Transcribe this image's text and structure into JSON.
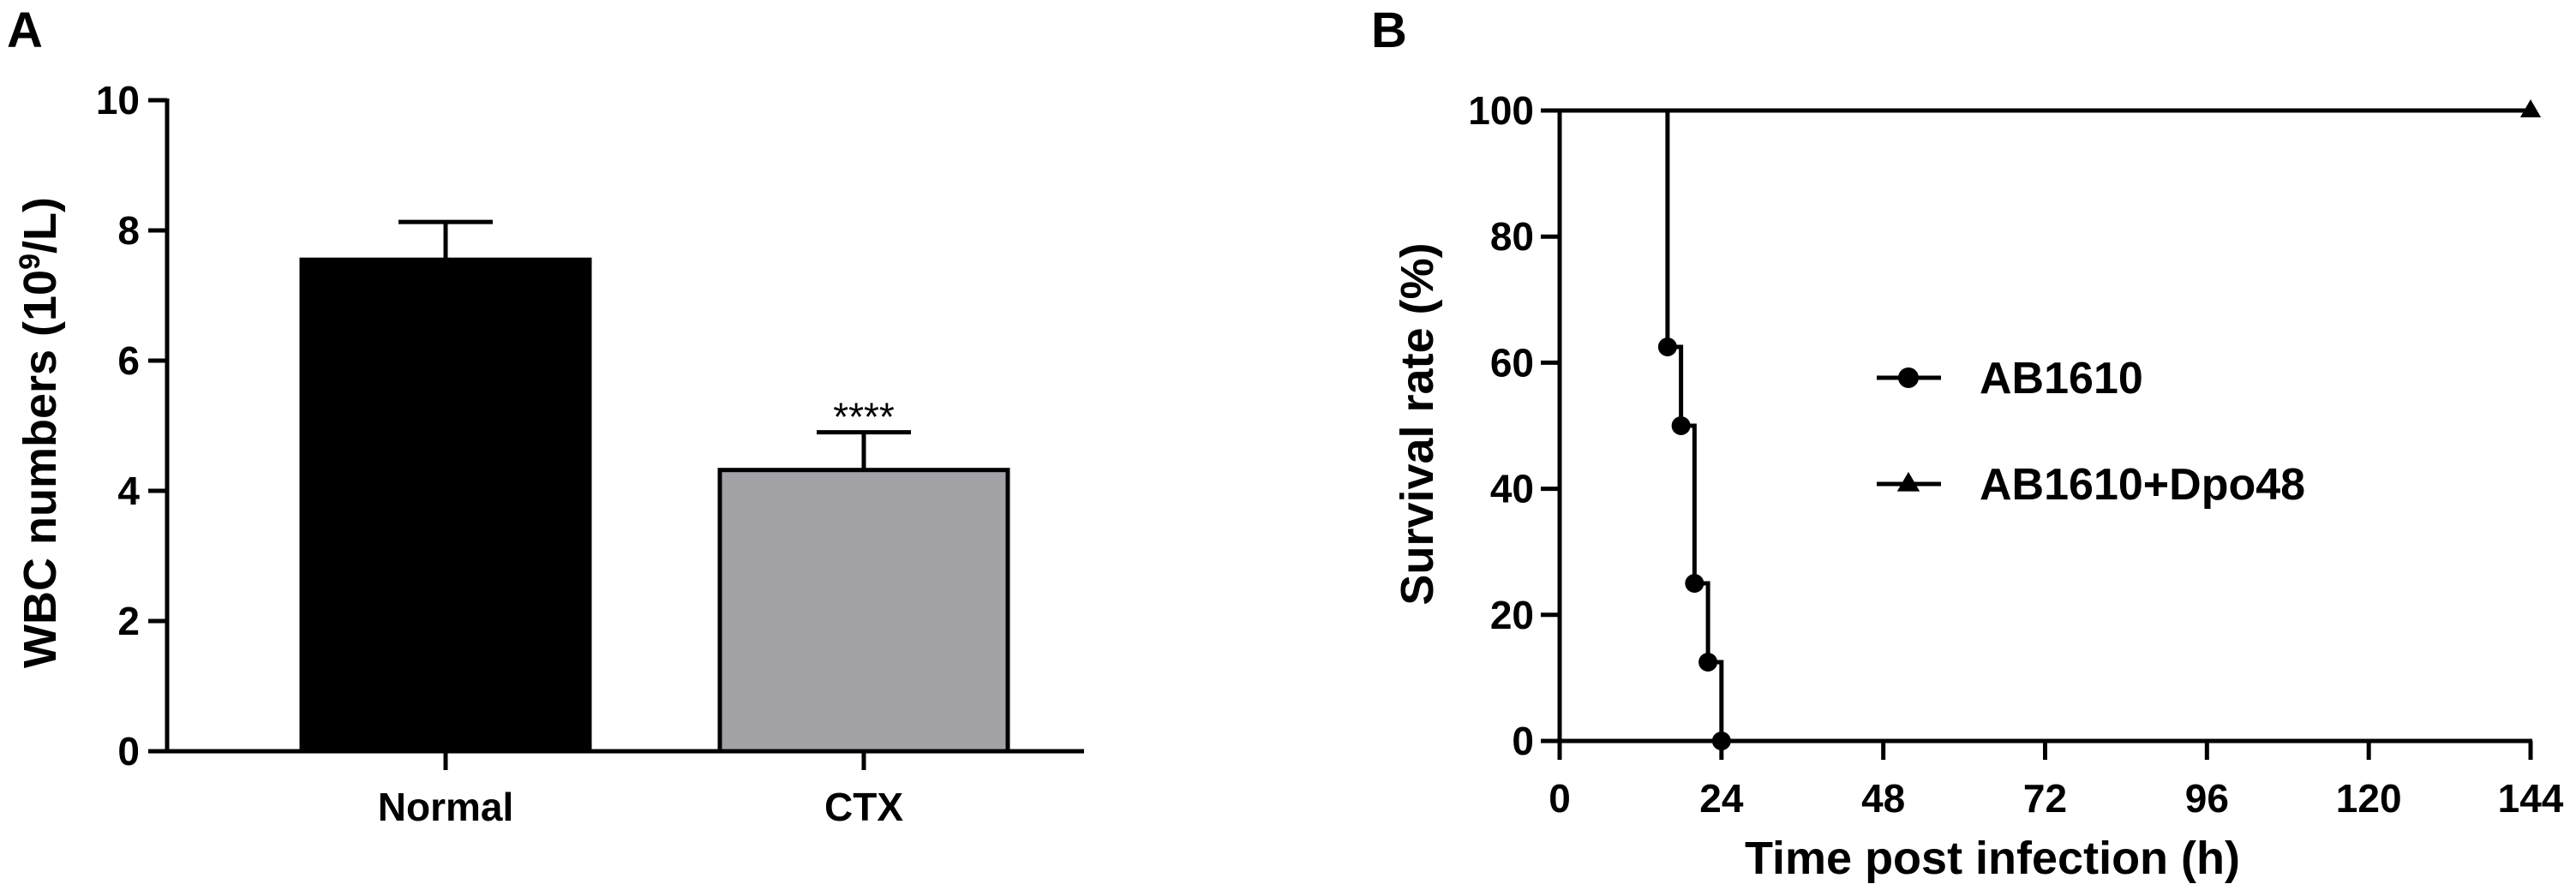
{
  "chart_data": [
    {
      "type": "bar",
      "panel_label": "A",
      "categories": [
        "Normal",
        "CTX"
      ],
      "values": [
        7.55,
        4.32
      ],
      "errors": [
        0.58,
        0.58
      ],
      "bar_colors": [
        "#000000",
        "#a3a2a7"
      ],
      "annotations": [
        "",
        "****"
      ],
      "title": "",
      "xlabel": "",
      "ylabel_main": "WBC numbers (10",
      "ylabel_sup": "9",
      "ylabel_end": "/L)",
      "ylim": [
        0,
        10
      ],
      "yticks": [
        0,
        2,
        4,
        6,
        8,
        10
      ],
      "grid": false
    },
    {
      "type": "line",
      "step": true,
      "panel_label": "B",
      "title": "",
      "xlabel": "Time post infection (h)",
      "ylabel": "Survival rate (%)",
      "xlim": [
        0,
        144
      ],
      "ylim": [
        0,
        100
      ],
      "xticks": [
        0,
        24,
        48,
        72,
        96,
        120,
        144
      ],
      "yticks": [
        0,
        20,
        40,
        60,
        80,
        100
      ],
      "grid": false,
      "legend_position": "center-right",
      "series": [
        {
          "name": "AB1610",
          "marker": "circle",
          "x": [
            0,
            16,
            18,
            20,
            22,
            24
          ],
          "y": [
            100,
            62.5,
            50,
            25,
            12.5,
            0
          ]
        },
        {
          "name": "AB1610+Dpo48",
          "marker": "triangle",
          "x": [
            0,
            144
          ],
          "y": [
            100,
            100
          ]
        }
      ]
    }
  ]
}
